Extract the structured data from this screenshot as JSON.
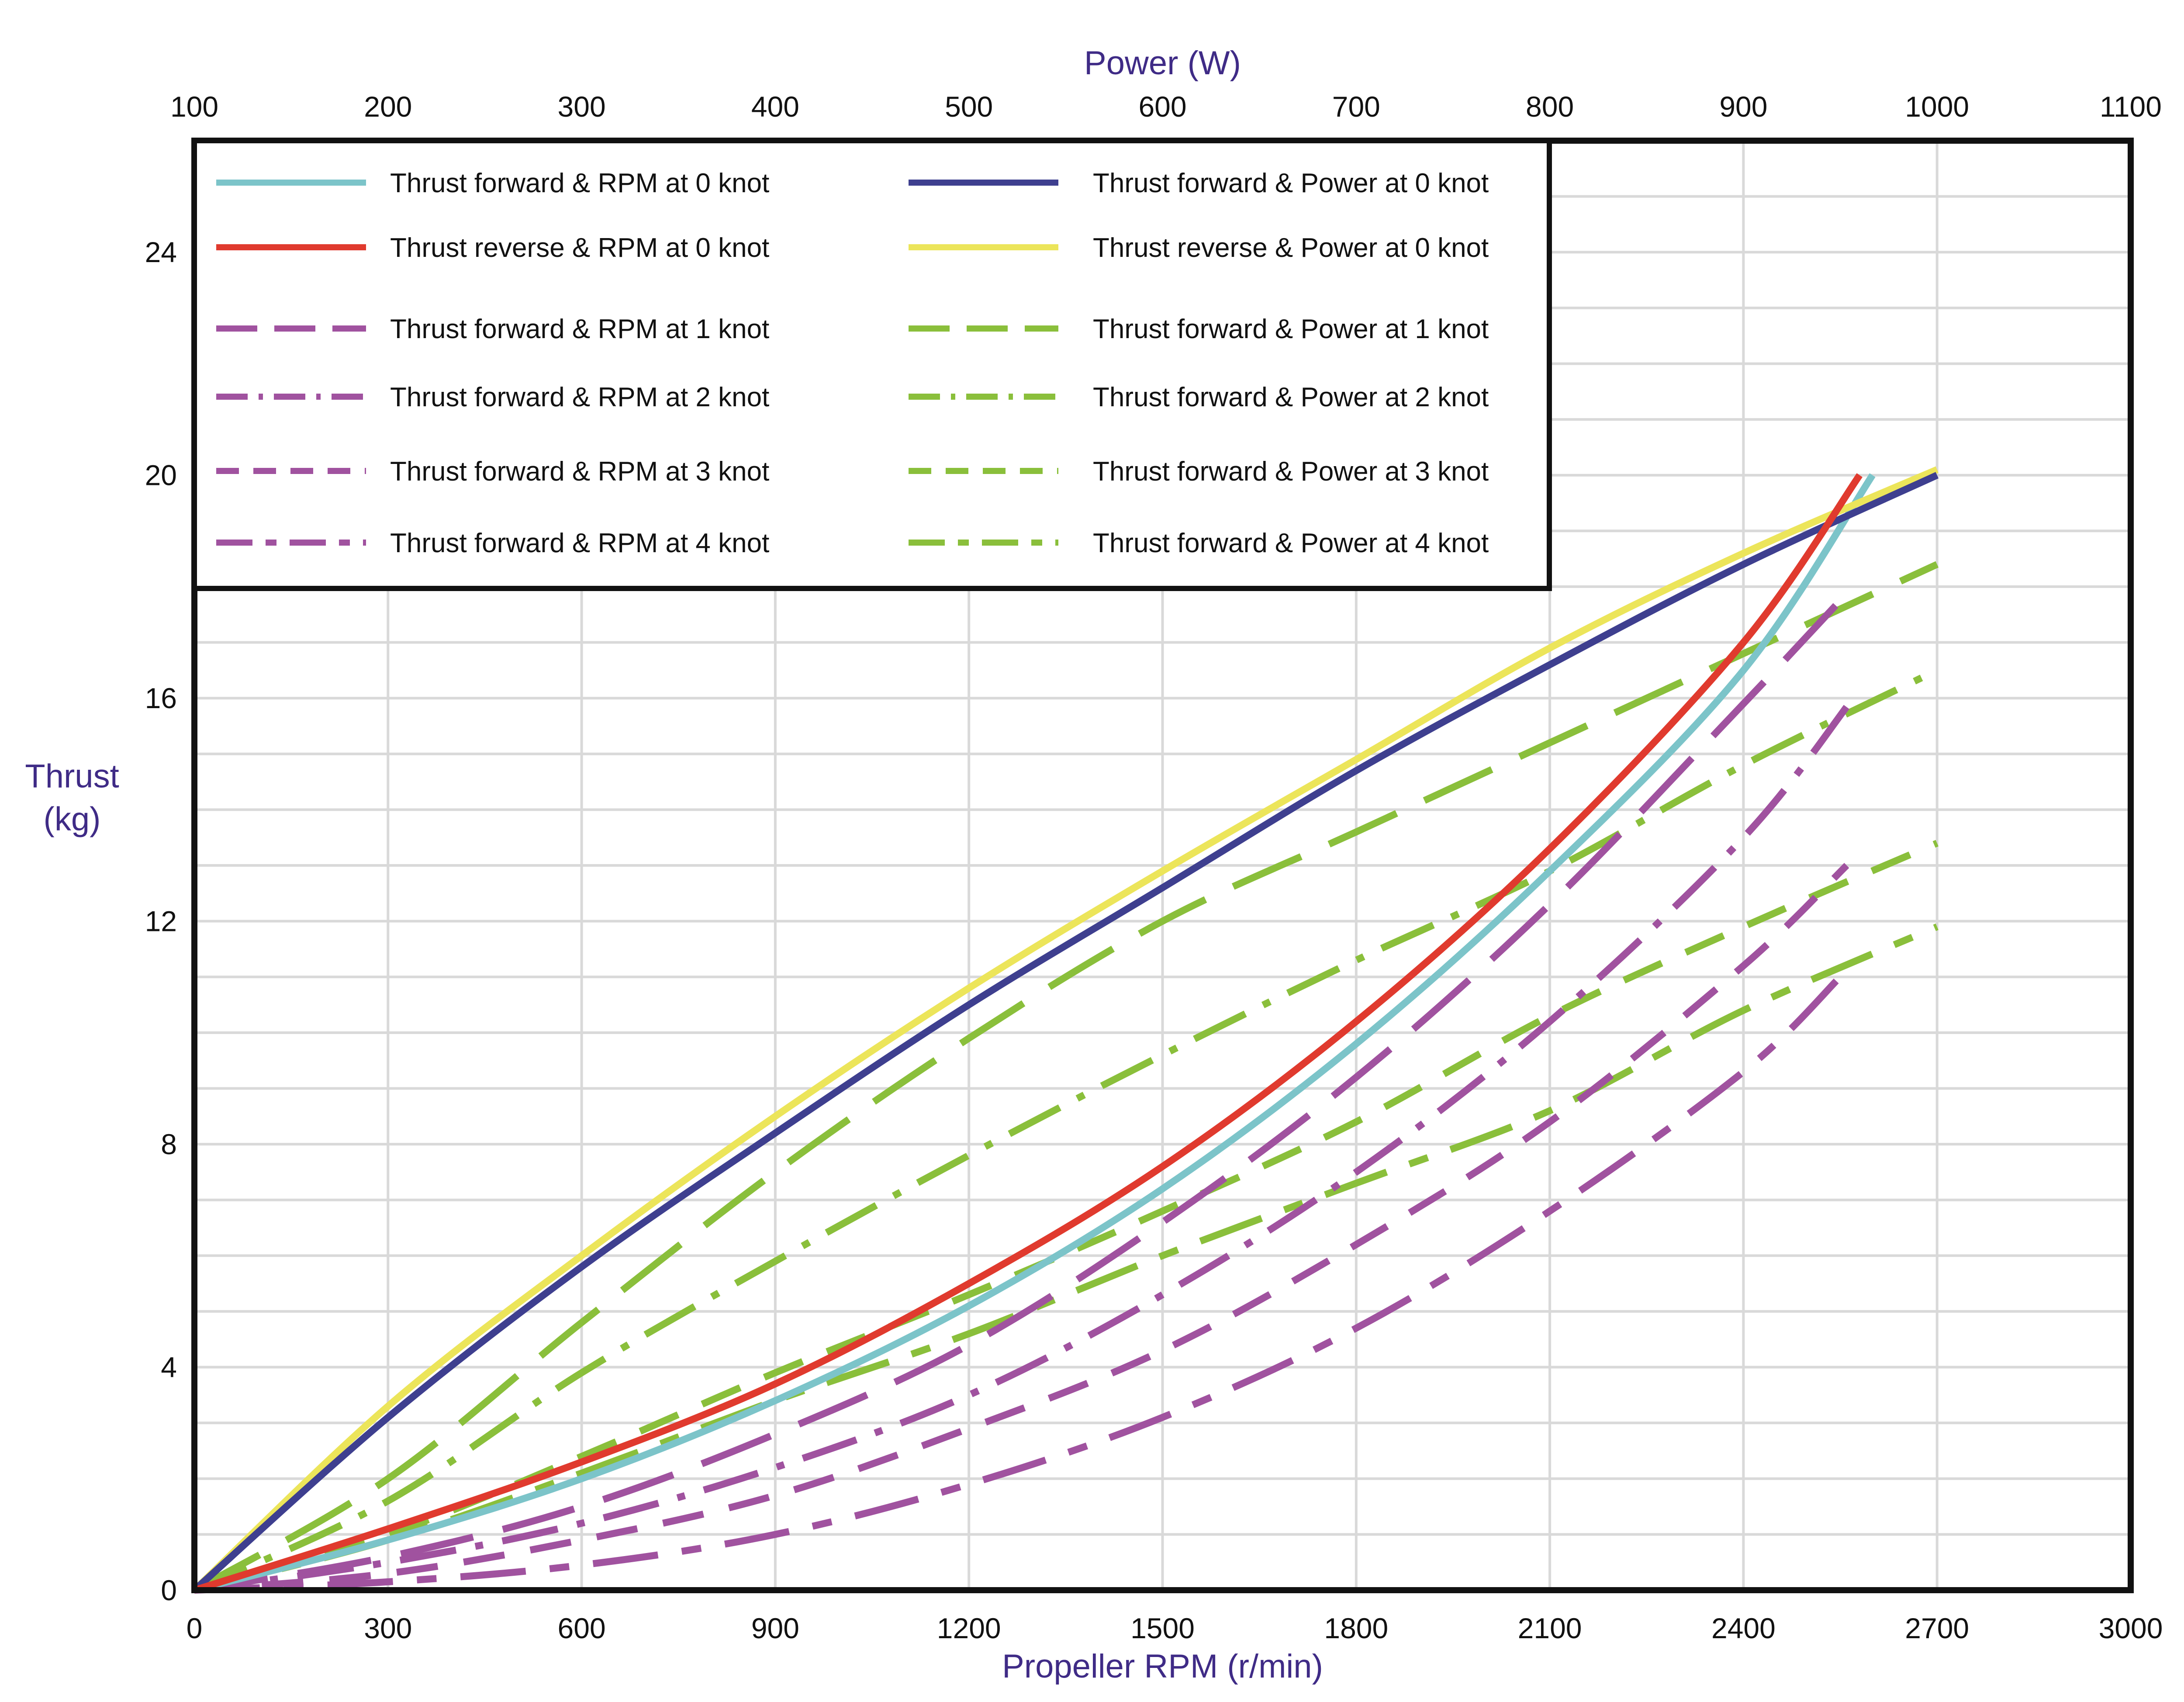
{
  "chart_data": {
    "type": "line",
    "title": "",
    "xlabel": "Propeller RPM (r/min)",
    "x2label": "Power (W)",
    "ylabel_lines": [
      "Thrust",
      "(kg)"
    ],
    "xlim": [
      0,
      3000
    ],
    "x2lim": [
      100,
      1100
    ],
    "ylim": [
      0,
      26
    ],
    "x_ticks": [
      0,
      300,
      600,
      900,
      1200,
      1500,
      1800,
      2100,
      2400,
      2700,
      3000
    ],
    "x2_ticks": [
      100,
      200,
      300,
      400,
      500,
      600,
      700,
      800,
      900,
      1000,
      1100
    ],
    "y_ticks": [
      0,
      4,
      8,
      12,
      16,
      20,
      24
    ],
    "grid": true,
    "legend_position": "top-left",
    "colors": {
      "cyan": "#7cc4c9",
      "red": "#e03a2e",
      "navy": "#3e3f8f",
      "yellow": "#ece55a",
      "purple": "#a0529f",
      "green": "#8abf3b",
      "axis_title": "#3f2b86"
    },
    "series": [
      {
        "name": "Thrust forward &  RPM at 0 knot",
        "axis": "rpm",
        "color": "#7cc4c9",
        "dash": "solid",
        "x": [
          0,
          300,
          600,
          900,
          1200,
          1500,
          1800,
          2100,
          2400,
          2600
        ],
        "y": [
          0,
          0.9,
          2.0,
          3.4,
          5.1,
          7.2,
          9.8,
          12.9,
          16.5,
          20.0
        ]
      },
      {
        "name": "Thrust reverse  &  RPM at 0 knot",
        "axis": "rpm",
        "color": "#e03a2e",
        "dash": "solid",
        "x": [
          0,
          300,
          600,
          900,
          1200,
          1500,
          1800,
          2100,
          2400,
          2580
        ],
        "y": [
          0,
          1.1,
          2.3,
          3.7,
          5.5,
          7.6,
          10.2,
          13.3,
          17.0,
          20.0
        ]
      },
      {
        "name": "Thrust forward & Power at 0 knot",
        "axis": "power",
        "color": "#3e3f8f",
        "dash": "solid",
        "x": [
          100,
          200,
          300,
          400,
          500,
          600,
          700,
          800,
          900,
          1000
        ],
        "y": [
          0,
          3.1,
          5.8,
          8.2,
          10.5,
          12.6,
          14.7,
          16.6,
          18.4,
          20.0
        ]
      },
      {
        "name": "Thrust reverse & Power at 0 knot",
        "axis": "power",
        "color": "#ece55a",
        "dash": "solid",
        "x": [
          100,
          200,
          300,
          400,
          500,
          600,
          700,
          800,
          900,
          1000
        ],
        "y": [
          0,
          3.3,
          6.0,
          8.5,
          10.8,
          12.9,
          14.9,
          16.9,
          18.6,
          20.1
        ]
      },
      {
        "name": "Thrust forward &  RPM at 1 knot",
        "axis": "rpm",
        "color": "#a0529f",
        "dash": "long",
        "x": [
          0,
          300,
          600,
          900,
          1200,
          1500,
          1800,
          2100,
          2400,
          2570
        ],
        "y": [
          0,
          0.6,
          1.5,
          2.8,
          4.4,
          6.6,
          9.2,
          12.3,
          15.9,
          18.0
        ]
      },
      {
        "name": "Thrust forward &  RPM at 2 knot",
        "axis": "rpm",
        "color": "#a0529f",
        "dash": "dashdot",
        "x": [
          0,
          300,
          600,
          900,
          1200,
          1500,
          1800,
          2100,
          2400,
          2570
        ],
        "y": [
          0,
          0.5,
          1.2,
          2.2,
          3.5,
          5.3,
          7.5,
          10.2,
          13.5,
          16.0
        ]
      },
      {
        "name": "Thrust forward &  RPM at 3 knot",
        "axis": "rpm",
        "color": "#a0529f",
        "dash": "medium",
        "x": [
          0,
          300,
          600,
          900,
          1200,
          1500,
          1800,
          2100,
          2400,
          2560
        ],
        "y": [
          0,
          0.3,
          0.9,
          1.7,
          2.9,
          4.3,
          6.2,
          8.4,
          11.2,
          13.0
        ]
      },
      {
        "name": "Thrust forward &  RPM at 4 knot",
        "axis": "rpm",
        "color": "#a0529f",
        "dash": "longshort",
        "x": [
          0,
          300,
          600,
          900,
          1200,
          1500,
          1800,
          2100,
          2400,
          2550
        ],
        "y": [
          0,
          0.15,
          0.45,
          1.0,
          1.9,
          3.1,
          4.7,
          6.8,
          9.3,
          11.0
        ]
      },
      {
        "name": "Thrust forward & Power at 1 knot",
        "axis": "power",
        "color": "#8abf3b",
        "dash": "long",
        "x": [
          100,
          200,
          300,
          400,
          500,
          600,
          700,
          800,
          900,
          1000
        ],
        "y": [
          0,
          2.0,
          4.8,
          7.5,
          9.9,
          12.0,
          13.6,
          15.2,
          16.8,
          18.4
        ]
      },
      {
        "name": "Thrust forward & Power at 2 knot",
        "axis": "power",
        "color": "#8abf3b",
        "dash": "dashdot",
        "x": [
          100,
          200,
          300,
          400,
          500,
          600,
          700,
          800,
          900,
          1000
        ],
        "y": [
          0,
          1.6,
          3.9,
          5.9,
          7.8,
          9.6,
          11.3,
          12.9,
          14.8,
          16.5
        ]
      },
      {
        "name": "Thrust forward & Power at 3 knot",
        "axis": "power",
        "color": "#8abf3b",
        "dash": "medium",
        "x": [
          100,
          200,
          300,
          400,
          500,
          600,
          700,
          800,
          900,
          1000
        ],
        "y": [
          0,
          1.0,
          2.4,
          3.9,
          5.3,
          6.8,
          8.4,
          10.3,
          11.9,
          13.4
        ]
      },
      {
        "name": "Thrust forward & Power at 4 knot",
        "axis": "power",
        "color": "#8abf3b",
        "dash": "longshort",
        "x": [
          100,
          200,
          300,
          400,
          500,
          600,
          700,
          800,
          900,
          1000
        ],
        "y": [
          0,
          0.9,
          2.1,
          3.4,
          4.6,
          6.0,
          7.3,
          8.6,
          10.4,
          11.9
        ]
      }
    ],
    "legend_left": [
      0,
      1,
      4,
      5,
      6,
      7
    ],
    "legend_right": [
      2,
      3,
      8,
      9,
      10,
      11
    ]
  }
}
